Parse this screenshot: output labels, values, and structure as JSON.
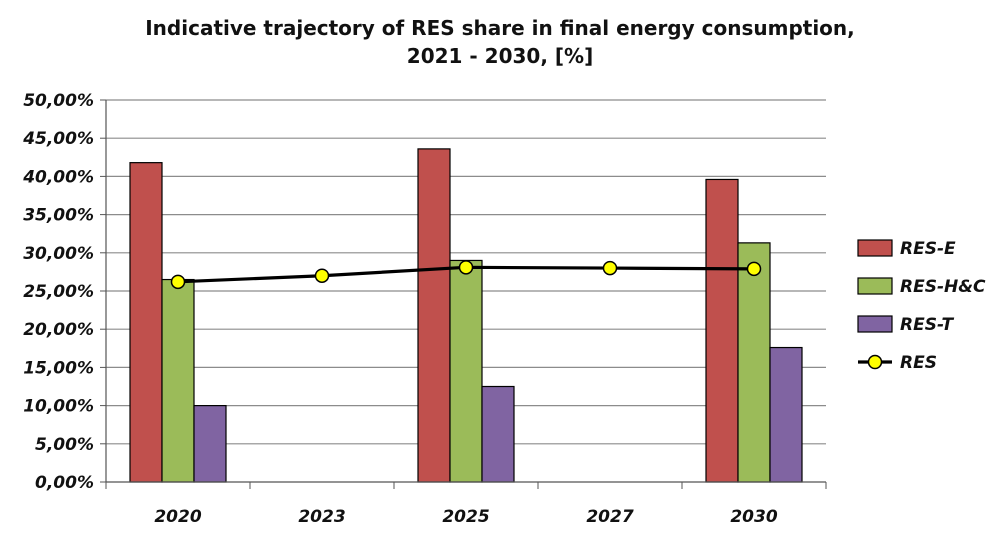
{
  "chart_data": {
    "type": "bar",
    "title_lines": [
      "Indicative trajectory of RES share in final energy consumption,",
      "2021 - 2030, [%]"
    ],
    "categories": [
      "2020",
      "2023",
      "2025",
      "2027",
      "2030"
    ],
    "y_tick_labels": [
      "0,00%",
      "5,00%",
      "10,00%",
      "15,00%",
      "20,00%",
      "25,00%",
      "30,00%",
      "35,00%",
      "40,00%",
      "45,00%",
      "50,00%"
    ],
    "ylim": [
      0,
      50
    ],
    "ystep": 5,
    "grid": "horizontal",
    "legend_position": "right",
    "series": [
      {
        "name": "RES-E",
        "type": "bar",
        "color": "#c0504d",
        "values": [
          41.8,
          null,
          43.6,
          null,
          39.6
        ]
      },
      {
        "name": "RES-H&C",
        "type": "bar",
        "color": "#9bbb59",
        "values": [
          26.5,
          null,
          29.0,
          null,
          31.3
        ]
      },
      {
        "name": "RES-T",
        "type": "bar",
        "color": "#8064a2",
        "values": [
          10.0,
          null,
          12.5,
          null,
          17.6
        ]
      },
      {
        "name": "RES",
        "type": "line",
        "color": "#000000",
        "marker_color": "#ffff00",
        "values": [
          26.2,
          27.0,
          28.1,
          28.0,
          27.9
        ]
      }
    ]
  }
}
